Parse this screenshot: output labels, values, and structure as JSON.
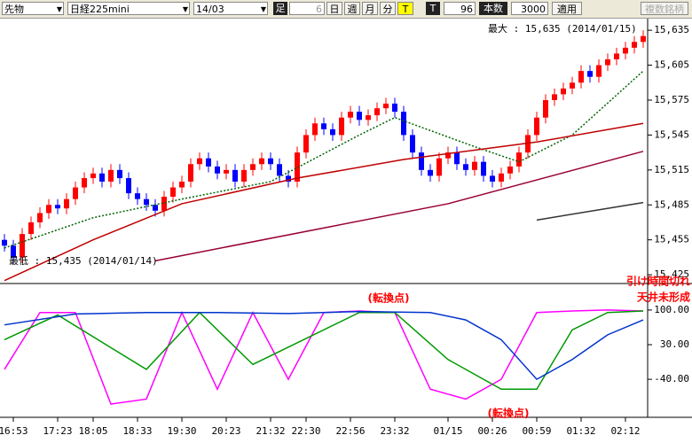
{
  "toolbar": {
    "market": "先物",
    "symbol": "日経225mini",
    "contract": "14/03",
    "bar_label": "足",
    "minutes": "6",
    "day": "日",
    "week": "週",
    "month": "月",
    "minute": "分",
    "tick": "T",
    "tick2": "T",
    "tick_count": "96",
    "count_label": "本数",
    "count": "3000",
    "apply": "適用",
    "multi": "複数銘柄"
  },
  "chart_data": [
    {
      "type": "candlestick",
      "up_color": "#ff0000",
      "down_color": "#0000ff",
      "xlim": [
        -0.5,
        72.5
      ],
      "ylim": [
        15419,
        15645
      ],
      "yticks": [
        {
          "value": 15635,
          "label": "15,635"
        },
        {
          "value": 15605,
          "label": "15,605"
        },
        {
          "value": 15575,
          "label": "15,575"
        },
        {
          "value": 15545,
          "label": "15,545"
        },
        {
          "value": 15515,
          "label": "15,515"
        },
        {
          "value": 15485,
          "label": "15,485"
        },
        {
          "value": 15455,
          "label": "15,455"
        },
        {
          "value": 15425,
          "label": "15,425"
        }
      ],
      "open": [
        15455,
        15450,
        15440,
        15460,
        15470,
        15478,
        15485,
        15482,
        15490,
        15500,
        15508,
        15512,
        15505,
        15515,
        15508,
        15495,
        15490,
        15485,
        15480,
        15492,
        15500,
        15505,
        15520,
        15525,
        15518,
        15512,
        15515,
        15505,
        15515,
        15520,
        15525,
        15520,
        15510,
        15505,
        15530,
        15545,
        15555,
        15550,
        15545,
        15560,
        15565,
        15558,
        15562,
        15568,
        15572,
        15565,
        15545,
        15530,
        15515,
        15510,
        15525,
        15530,
        15520,
        15515,
        15522,
        15510,
        15505,
        15512,
        15518,
        15530,
        15545,
        15560,
        15575,
        15580,
        15585,
        15590,
        15600,
        15595,
        15605,
        15610,
        15615,
        15620,
        15625
      ],
      "high": [
        15460,
        15455,
        15465,
        15475,
        15483,
        15490,
        15490,
        15495,
        15505,
        15513,
        15517,
        15517,
        15520,
        15520,
        15513,
        15500,
        15495,
        15490,
        15497,
        15505,
        15510,
        15525,
        15530,
        15530,
        15523,
        15520,
        15520,
        15520,
        15525,
        15530,
        15530,
        15525,
        15515,
        15535,
        15550,
        15560,
        15560,
        15555,
        15565,
        15570,
        15570,
        15567,
        15573,
        15577,
        15577,
        15570,
        15550,
        15535,
        15520,
        15530,
        15535,
        15535,
        15525,
        15527,
        15527,
        15515,
        15517,
        15523,
        15535,
        15550,
        15565,
        15580,
        15585,
        15590,
        15595,
        15605,
        15605,
        15610,
        15615,
        15620,
        15625,
        15630,
        15635
      ],
      "low": [
        15445,
        15435,
        15435,
        15455,
        15465,
        15473,
        15477,
        15477,
        15485,
        15495,
        15503,
        15500,
        15500,
        15503,
        15490,
        15485,
        15480,
        15475,
        15475,
        15487,
        15495,
        15500,
        15515,
        15513,
        15507,
        15507,
        15500,
        15500,
        15510,
        15515,
        15515,
        15505,
        15500,
        15500,
        15525,
        15540,
        15545,
        15540,
        15540,
        15555,
        15553,
        15553,
        15557,
        15563,
        15560,
        15540,
        15525,
        15510,
        15505,
        15505,
        15520,
        15515,
        15510,
        15510,
        15505,
        15500,
        15500,
        15507,
        15513,
        15525,
        15540,
        15555,
        15570,
        15575,
        15580,
        15585,
        15590,
        15590,
        15600,
        15605,
        15610,
        15615,
        15620
      ],
      "close": [
        15450,
        15440,
        15460,
        15470,
        15478,
        15485,
        15482,
        15490,
        15500,
        15508,
        15512,
        15505,
        15515,
        15508,
        15495,
        15490,
        15485,
        15480,
        15492,
        15500,
        15505,
        15520,
        15525,
        15518,
        15512,
        15515,
        15505,
        15515,
        15520,
        15525,
        15520,
        15510,
        15505,
        15530,
        15545,
        15555,
        15550,
        15545,
        15560,
        15565,
        15558,
        15562,
        15568,
        15572,
        15565,
        15545,
        15530,
        15515,
        15510,
        15525,
        15530,
        15520,
        15515,
        15522,
        15510,
        15505,
        15512,
        15518,
        15530,
        15545,
        15560,
        15575,
        15580,
        15585,
        15590,
        15600,
        15595,
        15605,
        15610,
        15615,
        15620,
        15625,
        15630
      ],
      "overlays": [
        {
          "color": "#006400",
          "dash": true,
          "x": [
            0,
            10,
            20,
            30,
            40,
            44,
            53,
            58,
            64,
            72
          ],
          "values": [
            15448,
            15474,
            15490,
            15505,
            15545,
            15560,
            15535,
            15522,
            15545,
            15600
          ]
        },
        {
          "color": "#c00000",
          "x": [
            0,
            10,
            20,
            33,
            45,
            60,
            72
          ],
          "values": [
            15420,
            15455,
            15486,
            15508,
            15524,
            15539,
            15555
          ]
        },
        {
          "color": "#990033",
          "x": [
            17,
            50,
            72
          ],
          "values": [
            15437,
            15486,
            15531
          ]
        },
        {
          "color": "#333333",
          "x": [
            60,
            72
          ],
          "values": [
            15472,
            15487
          ]
        }
      ],
      "annotations": [
        "最大 : 15,635 (2014/01/15)",
        "最低 : 15,435 (2014/01/14)"
      ]
    },
    {
      "type": "line",
      "xlim": [
        -0.5,
        72.5
      ],
      "ylim": [
        -115,
        150
      ],
      "yticks": [
        {
          "value": 100,
          "label": "100.00"
        },
        {
          "value": 30,
          "label": "30.00"
        },
        {
          "value": -40,
          "label": "-40.00"
        }
      ],
      "xticks": [
        {
          "value": 1,
          "label": "16:53"
        },
        {
          "value": 6,
          "label": "17:23"
        },
        {
          "value": 10,
          "label": "18:05"
        },
        {
          "value": 15,
          "label": "18:33"
        },
        {
          "value": 20,
          "label": "19:30"
        },
        {
          "value": 25,
          "label": "20:23"
        },
        {
          "value": 30,
          "label": "21:32"
        },
        {
          "value": 34,
          "label": "22:30"
        },
        {
          "value": 39,
          "label": "22:56"
        },
        {
          "value": 44,
          "label": "23:32"
        },
        {
          "value": 50,
          "label": "01/15"
        },
        {
          "value": 55,
          "label": "00:26"
        },
        {
          "value": 60,
          "label": "00:59"
        },
        {
          "value": 65,
          "label": "01:32"
        },
        {
          "value": 70,
          "label": "02:12"
        }
      ],
      "series": [
        {
          "color": "#ff00ff",
          "x": [
            0,
            4,
            8,
            12,
            16,
            20,
            24,
            28,
            32,
            36,
            40,
            44,
            48,
            52,
            56,
            60,
            64,
            68,
            72
          ],
          "values": [
            -20,
            95,
            95,
            -90,
            -80,
            95,
            -60,
            95,
            -40,
            95,
            98,
            95,
            -60,
            -80,
            -40,
            95,
            98,
            100,
            98
          ]
        },
        {
          "color": "#009900",
          "x": [
            0,
            6,
            16,
            22,
            28,
            40,
            44,
            50,
            56,
            60,
            64,
            68,
            72
          ],
          "values": [
            40,
            90,
            -20,
            95,
            -10,
            95,
            95,
            0,
            -60,
            -60,
            60,
            95,
            98
          ]
        },
        {
          "color": "#0033cc",
          "x": [
            0,
            8,
            16,
            24,
            32,
            40,
            48,
            52,
            56,
            60,
            64,
            68,
            72
          ],
          "values": [
            70,
            92,
            95,
            95,
            93,
            97,
            95,
            80,
            40,
            -40,
            0,
            50,
            80
          ]
        }
      ],
      "annotations": [
        "(転換点)",
        "(転換点)",
        "引け時間切れ",
        "天井未形成"
      ]
    }
  ]
}
